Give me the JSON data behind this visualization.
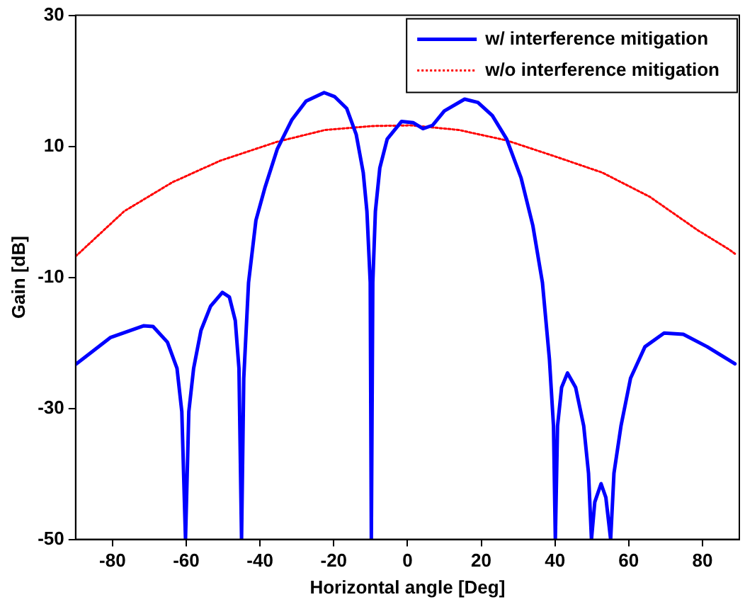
{
  "chart_data": {
    "type": "line",
    "xlabel": "Horizontal angle [Deg]",
    "ylabel": "Gain [dB]",
    "xlim": [
      -90,
      90
    ],
    "xticks": [
      -80,
      -60,
      -40,
      -20,
      0,
      20,
      40,
      60,
      80
    ],
    "ylim": [
      -50,
      30
    ],
    "yticks": [
      -50,
      -30,
      -10,
      10,
      30
    ],
    "grid": false,
    "legend": "top right",
    "marker": "none",
    "series": [
      {
        "name": "w/ interference mitigation",
        "color": "#0000ff",
        "line_style": "solid",
        "x": [
          -90,
          -80.6,
          -71.6,
          -69,
          -65.1,
          -62.5,
          -61.2,
          -60.2,
          -59.3,
          -58,
          -56,
          -53.4,
          -50.2,
          -48.3,
          -46.7,
          -45.7,
          -45,
          -44.4,
          -43.1,
          -41.1,
          -38.6,
          -35.3,
          -31.4,
          -27.5,
          -22.6,
          -19.8,
          -16.5,
          -13.9,
          -12,
          -11,
          -10.1,
          -9.8,
          -9.4,
          -8.7,
          -7.5,
          -5.5,
          -1.6,
          1.6,
          4.2,
          6.8,
          10,
          15.5,
          19.1,
          23,
          26.9,
          30.8,
          34,
          36.6,
          38.5,
          39.6,
          40.1,
          40.7,
          41.8,
          43.4,
          45.6,
          47.8,
          49.1,
          49.9,
          50.8,
          52.5,
          53.8,
          55.1,
          56,
          57.9,
          60.5,
          64.4,
          69.6,
          74.8,
          81.3,
          87.1,
          88.8
        ],
        "values": [
          -23.3,
          -19.2,
          -17.4,
          -17.5,
          -19.9,
          -23.9,
          -30.5,
          -50,
          -30.5,
          -23.9,
          -18.1,
          -14.4,
          -12.3,
          -13,
          -16.6,
          -23.9,
          -50,
          -25.4,
          -10.8,
          -1.3,
          3.8,
          9.6,
          14,
          16.9,
          18.2,
          17.6,
          15.8,
          11.8,
          6,
          0.1,
          -10.8,
          -50,
          -10.8,
          0.1,
          6.7,
          11.1,
          13.8,
          13.6,
          12.7,
          13.2,
          15.4,
          17.2,
          16.7,
          14.7,
          11.1,
          5.2,
          -2.1,
          -10.8,
          -22.5,
          -32.7,
          -50,
          -32.7,
          -26.8,
          -24.6,
          -26.8,
          -32.7,
          -39.9,
          -50,
          -44.3,
          -41.5,
          -43.6,
          -50,
          -39.9,
          -32.7,
          -25.4,
          -20.6,
          -18.5,
          -18.7,
          -20.6,
          -22.6,
          -23.2
        ]
      },
      {
        "name": "w/o interference mitigation",
        "color": "#ff0000",
        "line_style": "dotted",
        "x": [
          -90,
          -76.8,
          -63.8,
          -50.8,
          -35.3,
          -22.3,
          -9.4,
          1,
          13.9,
          26.9,
          39.8,
          52.8,
          65.7,
          78.7,
          87.1,
          88.8
        ],
        "values": [
          -6.8,
          0.1,
          4.5,
          7.8,
          10.7,
          12.5,
          13.1,
          13.2,
          12.5,
          10.9,
          8.5,
          6,
          2.3,
          -2.8,
          -5.7,
          -6.4
        ]
      }
    ]
  }
}
